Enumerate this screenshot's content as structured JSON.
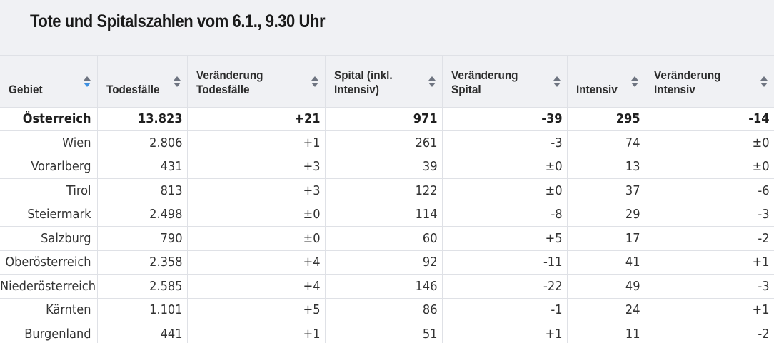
{
  "title": "Tote und Spitalszahlen vom 6.1., 9.30 Uhr",
  "columns": [
    {
      "l1": "",
      "l2": "Gebiet"
    },
    {
      "l1": "",
      "l2": "Todesfälle"
    },
    {
      "l1": "Veränderung",
      "l2": "Todesfälle"
    },
    {
      "l1": "Spital (inkl.",
      "l2": "Intensiv)"
    },
    {
      "l1": "Veränderung",
      "l2": "Spital"
    },
    {
      "l1": "",
      "l2": "Intensiv"
    },
    {
      "l1": "Veränderung",
      "l2": "Intensiv"
    }
  ],
  "active_sort_color": "#3d8fe0",
  "rows": [
    [
      "Österreich",
      "13.823",
      "+21",
      "971",
      "-39",
      "295",
      "-14"
    ],
    [
      "Wien",
      "2.806",
      "+1",
      "261",
      "-3",
      "74",
      "±0"
    ],
    [
      "Vorarlberg",
      "431",
      "+3",
      "39",
      "±0",
      "13",
      "±0"
    ],
    [
      "Tirol",
      "813",
      "+3",
      "122",
      "±0",
      "37",
      "-6"
    ],
    [
      "Steiermark",
      "2.498",
      "±0",
      "114",
      "-8",
      "29",
      "-3"
    ],
    [
      "Salzburg",
      "790",
      "±0",
      "60",
      "+5",
      "17",
      "-2"
    ],
    [
      "Oberösterreich",
      "2.358",
      "+4",
      "92",
      "-11",
      "41",
      "+1"
    ],
    [
      "Niederösterreich",
      "2.585",
      "+4",
      "146",
      "-22",
      "49",
      "-3"
    ],
    [
      "Kärnten",
      "1.101",
      "+5",
      "86",
      "-1",
      "24",
      "+1"
    ],
    [
      "Burgenland",
      "441",
      "+1",
      "51",
      "+1",
      "11",
      "-2"
    ]
  ]
}
